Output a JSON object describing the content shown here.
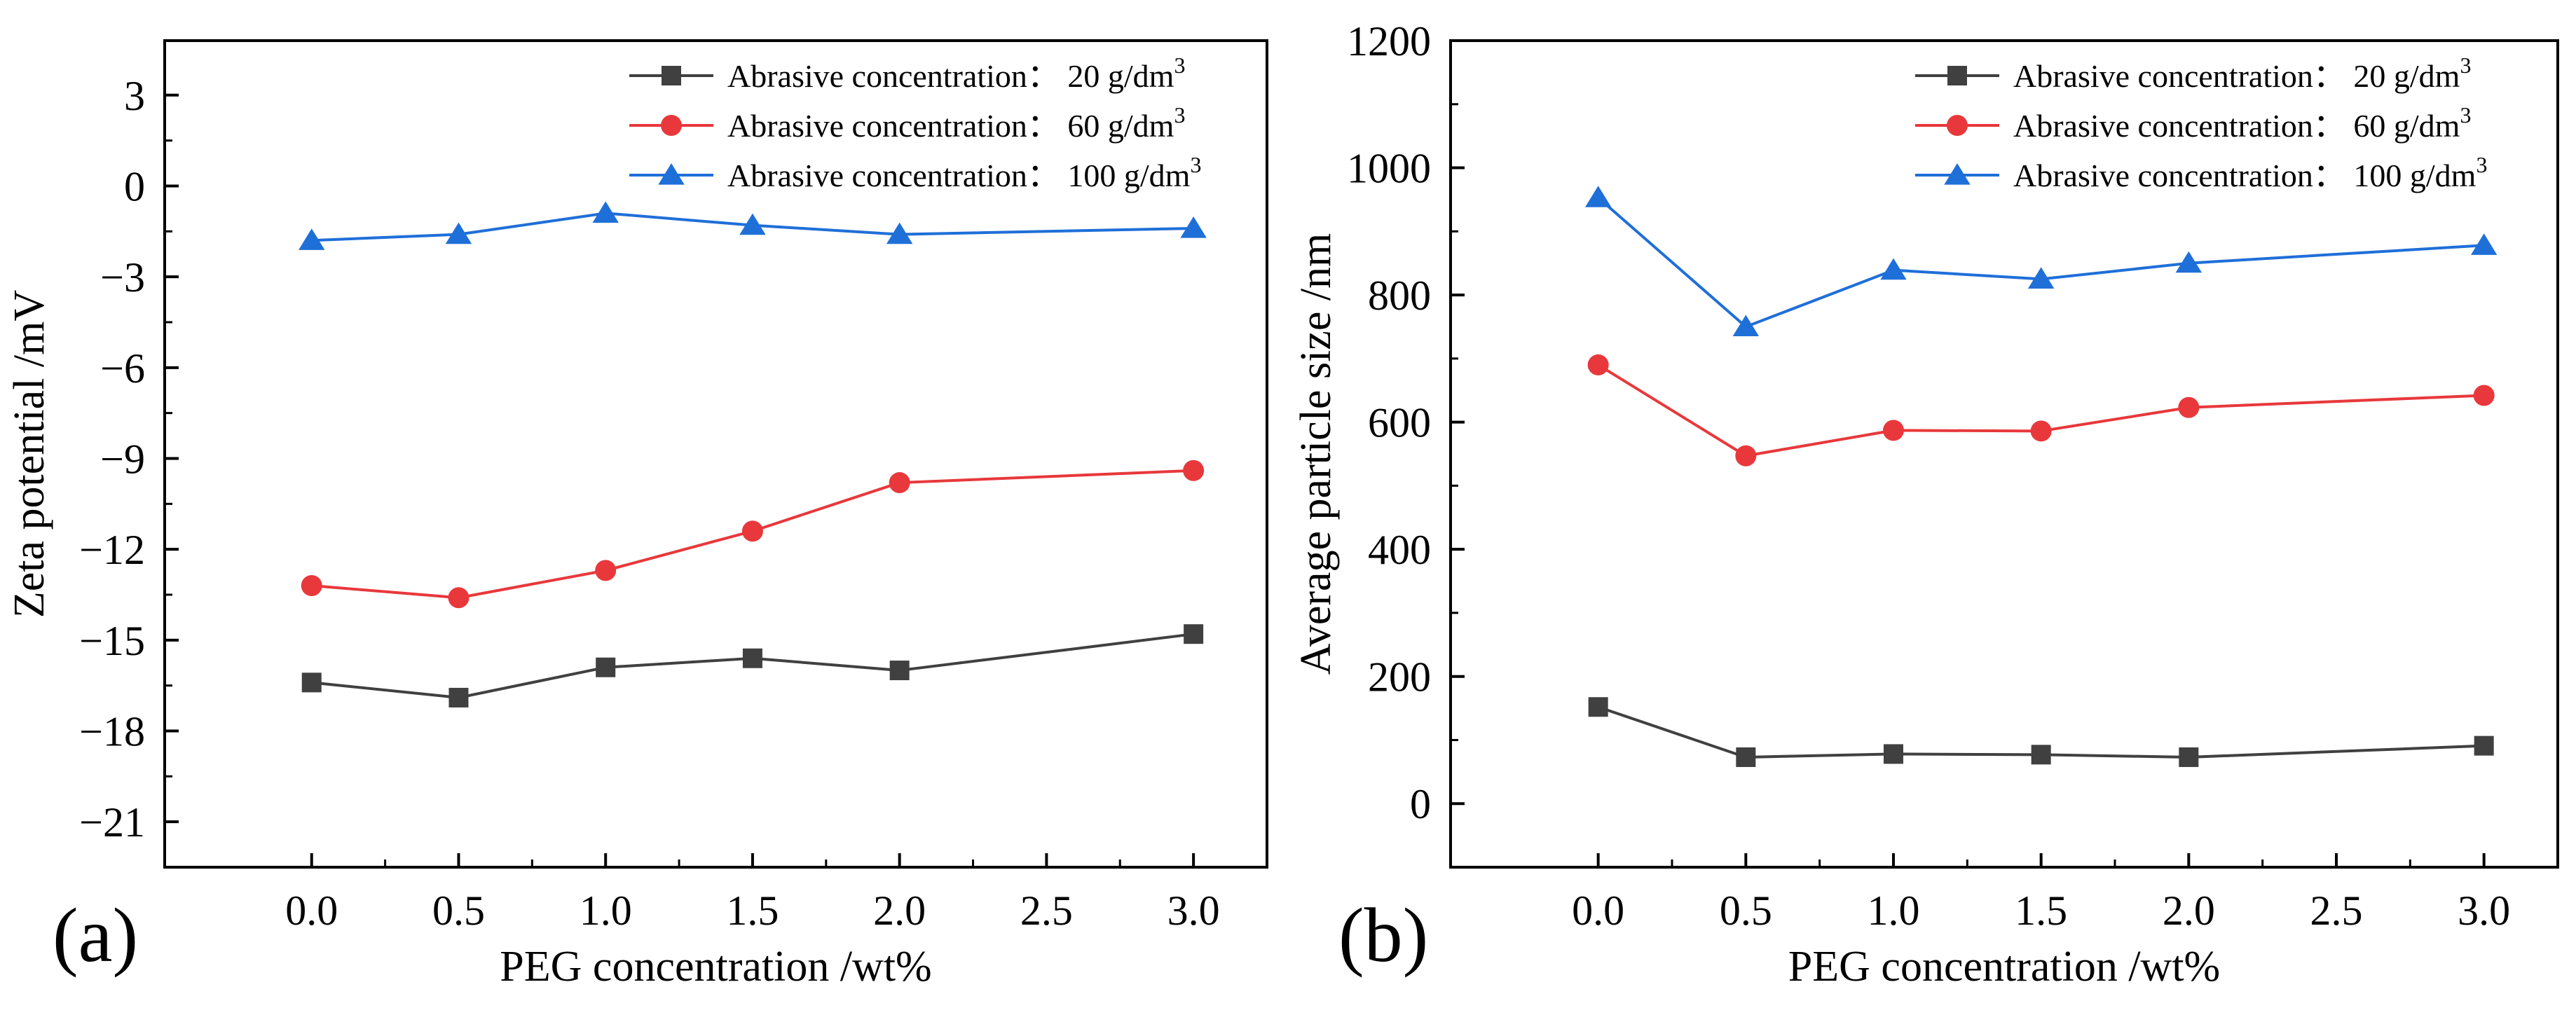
{
  "chart_data": [
    {
      "type": "line",
      "panel_label": "(a)",
      "xlabel": "PEG concentration /wt%",
      "ylabel": "Zeta potential /mV",
      "xlim": [
        -0.5,
        3.25
      ],
      "ylim": [
        -22.5,
        4.8
      ],
      "xticks": [
        0.0,
        0.5,
        1.0,
        1.5,
        2.0,
        2.5,
        3.0
      ],
      "xtick_labels": [
        "0.0",
        "0.5",
        "1.0",
        "1.5",
        "2.0",
        "2.5",
        "3.0"
      ],
      "yticks": [
        3,
        0,
        -3,
        -6,
        -9,
        -12,
        -15,
        -18,
        -21
      ],
      "ytick_labels": [
        "3",
        "0",
        "−3",
        "−6",
        "−9",
        "−12",
        "−15",
        "−18",
        "−21"
      ],
      "legend_position": "top-right",
      "series": [
        {
          "name": "Abrasive concentration： 20 g/dm",
          "sup": "3",
          "marker": "square",
          "color": "#404040",
          "x": [
            0.0,
            0.5,
            1.0,
            1.5,
            2.0,
            3.0
          ],
          "y": [
            -16.4,
            -16.9,
            -15.9,
            -15.6,
            -16.0,
            -14.8
          ]
        },
        {
          "name": "Abrasive concentration： 60 g/dm",
          "sup": "3",
          "marker": "circle",
          "color": "#e8383b",
          "x": [
            0.0,
            0.5,
            1.0,
            1.5,
            2.0,
            3.0
          ],
          "y": [
            -13.2,
            -13.6,
            -12.7,
            -11.4,
            -9.8,
            -9.4
          ]
        },
        {
          "name": "Abrasive concentration： 100 g/dm",
          "sup": "3",
          "marker": "triangle",
          "color": "#1f6fd8",
          "x": [
            0.0,
            0.5,
            1.0,
            1.5,
            2.0,
            3.0
          ],
          "y": [
            -1.8,
            -1.6,
            -0.9,
            -1.3,
            -1.6,
            -1.4
          ]
        }
      ]
    },
    {
      "type": "line",
      "panel_label": "(b)",
      "xlabel": "PEG concentration /wt%",
      "ylabel": "Average particle size /nm",
      "xlim": [
        -0.5,
        3.25
      ],
      "ylim": [
        -100,
        1200
      ],
      "xticks": [
        0.0,
        0.5,
        1.0,
        1.5,
        2.0,
        2.5,
        3.0
      ],
      "xtick_labels": [
        "0.0",
        "0.5",
        "1.0",
        "1.5",
        "2.0",
        "2.5",
        "3.0"
      ],
      "yticks": [
        0,
        200,
        400,
        600,
        800,
        1000,
        1200
      ],
      "ytick_labels": [
        "0",
        "200",
        "400",
        "600",
        "800",
        "1000",
        "1200"
      ],
      "legend_position": "top-right",
      "series": [
        {
          "name": "Abrasive concentration： 20 g/dm",
          "sup": "3",
          "marker": "square",
          "color": "#404040",
          "x": [
            0.0,
            0.5,
            1.0,
            1.5,
            2.0,
            3.0
          ],
          "y": [
            152,
            73,
            78,
            77,
            73,
            91
          ]
        },
        {
          "name": "Abrasive concentration： 60 g/dm",
          "sup": "3",
          "marker": "circle",
          "color": "#e8383b",
          "x": [
            0.0,
            0.5,
            1.0,
            1.5,
            2.0,
            3.0
          ],
          "y": [
            690,
            547,
            587,
            586,
            623,
            642
          ]
        },
        {
          "name": "Abrasive concentration： 100 g/dm",
          "sup": "3",
          "marker": "triangle",
          "color": "#1f6fd8",
          "x": [
            0.0,
            0.5,
            1.0,
            1.5,
            2.0,
            3.0
          ],
          "y": [
            953,
            750,
            839,
            825,
            850,
            878
          ]
        }
      ]
    }
  ]
}
